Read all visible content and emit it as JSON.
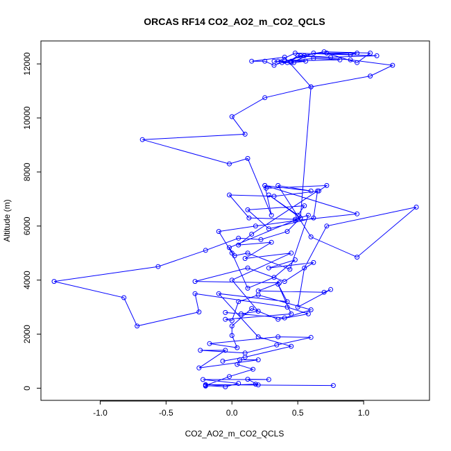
{
  "chart_data": {
    "type": "scatter",
    "title": "ORCAS RF14 CO2_AO2_m_CO2_QCLS",
    "xlabel": "CO2_AO2_m_CO2_QCLS",
    "ylabel": "Altitude (m)",
    "xlim": [
      -1.45,
      1.5
    ],
    "ylim": [
      -450,
      12850
    ],
    "xticks": [
      -1.0,
      -0.5,
      0.0,
      0.5,
      1.0
    ],
    "xtick_labels": [
      "-1.0",
      "-0.5",
      "0.0",
      "0.5",
      "1.0"
    ],
    "yticks": [
      0,
      2000,
      4000,
      6000,
      8000,
      10000,
      12000
    ],
    "ytick_labels": [
      "0",
      "2000",
      "4000",
      "6000",
      "8000",
      "10000",
      "12000"
    ],
    "grid": false,
    "color": "#0000ff",
    "marker": "open-circle",
    "connected": true,
    "series": [
      {
        "points": [
          [
            0.77,
            100
          ],
          [
            -0.2,
            130
          ],
          [
            -0.2,
            80
          ],
          [
            0.18,
            150
          ],
          [
            0.2,
            120
          ],
          [
            0.12,
            330
          ],
          [
            0.28,
            320
          ],
          [
            -0.22,
            320
          ],
          [
            0.05,
            180
          ],
          [
            -0.05,
            50
          ],
          [
            -0.2,
            100
          ],
          [
            -0.02,
            430
          ],
          [
            0.16,
            700
          ],
          [
            0.04,
            880
          ],
          [
            0.06,
            1050
          ],
          [
            0.2,
            1050
          ],
          [
            -0.25,
            750
          ],
          [
            -0.05,
            1400
          ],
          [
            -0.24,
            1400
          ],
          [
            0.1,
            1300
          ],
          [
            0.34,
            1600
          ],
          [
            0.6,
            1880
          ],
          [
            0.35,
            1900
          ],
          [
            -0.17,
            1650
          ],
          [
            0.04,
            1500
          ],
          [
            0.0,
            1950
          ],
          [
            0.0,
            2300
          ],
          [
            0.15,
            2950
          ],
          [
            0.35,
            2550
          ],
          [
            0.58,
            2750
          ],
          [
            0.42,
            3000
          ],
          [
            -0.28,
            3500
          ],
          [
            -0.25,
            2820
          ],
          [
            -0.72,
            2300
          ],
          [
            -0.82,
            3350
          ],
          [
            -1.35,
            3950
          ],
          [
            -0.56,
            4500
          ],
          [
            -0.2,
            5100
          ],
          [
            0.05,
            5550
          ],
          [
            0.22,
            5500
          ],
          [
            0.42,
            5800
          ],
          [
            0.52,
            6300
          ],
          [
            -0.02,
            5200
          ],
          [
            0.02,
            4900
          ],
          [
            0.12,
            5000
          ],
          [
            0.44,
            4400
          ],
          [
            0.58,
            6400
          ],
          [
            0.48,
            6250
          ],
          [
            0.13,
            6300
          ],
          [
            -0.02,
            7150
          ],
          [
            0.32,
            7100
          ],
          [
            0.66,
            7300
          ],
          [
            0.72,
            7500
          ],
          [
            0.26,
            7400
          ],
          [
            0.25,
            7500
          ],
          [
            0.95,
            6450
          ],
          [
            0.48,
            6200
          ],
          [
            0.18,
            6000
          ],
          [
            -0.1,
            5800
          ],
          [
            0.0,
            5000
          ],
          [
            0.12,
            3700
          ],
          [
            0.32,
            4100
          ],
          [
            0.48,
            4750
          ],
          [
            0.28,
            4450
          ],
          [
            0.62,
            4650
          ],
          [
            0.4,
            3950
          ],
          [
            0.12,
            4450
          ],
          [
            -0.28,
            3950
          ],
          [
            0.36,
            3900
          ],
          [
            0.2,
            3600
          ],
          [
            0.7,
            3550
          ],
          [
            0.75,
            3650
          ],
          [
            0.5,
            3000
          ],
          [
            0.55,
            4450
          ],
          [
            0.72,
            6000
          ],
          [
            1.4,
            6700
          ],
          [
            0.95,
            4850
          ],
          [
            0.6,
            5600
          ],
          [
            0.35,
            7500
          ],
          [
            0.6,
            7300
          ],
          [
            0.25,
            7500
          ],
          [
            0.3,
            6400
          ],
          [
            0.12,
            8500
          ],
          [
            -0.02,
            8300
          ],
          [
            -0.68,
            9200
          ],
          [
            0.1,
            9400
          ],
          [
            0.0,
            10050
          ],
          [
            0.25,
            10750
          ],
          [
            0.6,
            11150
          ],
          [
            1.05,
            11550
          ],
          [
            1.22,
            11950
          ],
          [
            0.9,
            12150
          ],
          [
            0.5,
            12300
          ],
          [
            0.42,
            12050
          ],
          [
            0.52,
            12300
          ],
          [
            0.7,
            12450
          ],
          [
            1.05,
            12400
          ],
          [
            0.95,
            12050
          ],
          [
            0.72,
            12400
          ],
          [
            0.9,
            12350
          ],
          [
            0.95,
            12400
          ],
          [
            0.62,
            12400
          ],
          [
            0.45,
            12050
          ],
          [
            0.32,
            12100
          ],
          [
            0.82,
            12150
          ],
          [
            0.62,
            12200
          ],
          [
            0.4,
            12100
          ],
          [
            0.55,
            12300
          ],
          [
            0.75,
            12250
          ],
          [
            1.1,
            12300
          ],
          [
            0.48,
            12400
          ],
          [
            0.35,
            12100
          ],
          [
            0.45,
            12100
          ],
          [
            0.56,
            12100
          ],
          [
            0.47,
            12050
          ],
          [
            0.38,
            12050
          ],
          [
            0.32,
            11950
          ],
          [
            0.25,
            12100
          ],
          [
            0.15,
            12100
          ],
          [
            0.4,
            12250
          ],
          [
            0.6,
            11150
          ],
          [
            0.52,
            6300
          ],
          [
            0.28,
            7150
          ],
          [
            0.5,
            6400
          ],
          [
            0.55,
            6750
          ],
          [
            0.12,
            6600
          ],
          [
            0.28,
            5900
          ],
          [
            0.62,
            6300
          ],
          [
            0.65,
            7300
          ],
          [
            0.15,
            5700
          ],
          [
            0.05,
            5300
          ],
          [
            0.3,
            5400
          ],
          [
            0.1,
            4800
          ],
          [
            0.45,
            5000
          ],
          [
            0.0,
            4000
          ],
          [
            0.2,
            2850
          ],
          [
            0.07,
            2750
          ],
          [
            -0.05,
            2800
          ],
          [
            0.4,
            2600
          ],
          [
            0.6,
            2900
          ],
          [
            0.2,
            3450
          ],
          [
            0.05,
            3200
          ],
          [
            0.0,
            2500
          ],
          [
            -0.05,
            2550
          ],
          [
            0.45,
            2750
          ],
          [
            0.35,
            3850
          ],
          [
            0.42,
            3200
          ],
          [
            -0.1,
            3500
          ],
          [
            0.2,
            1900
          ],
          [
            0.45,
            1550
          ],
          [
            0.1,
            1150
          ],
          [
            -0.07,
            1000
          ]
        ]
      }
    ]
  }
}
